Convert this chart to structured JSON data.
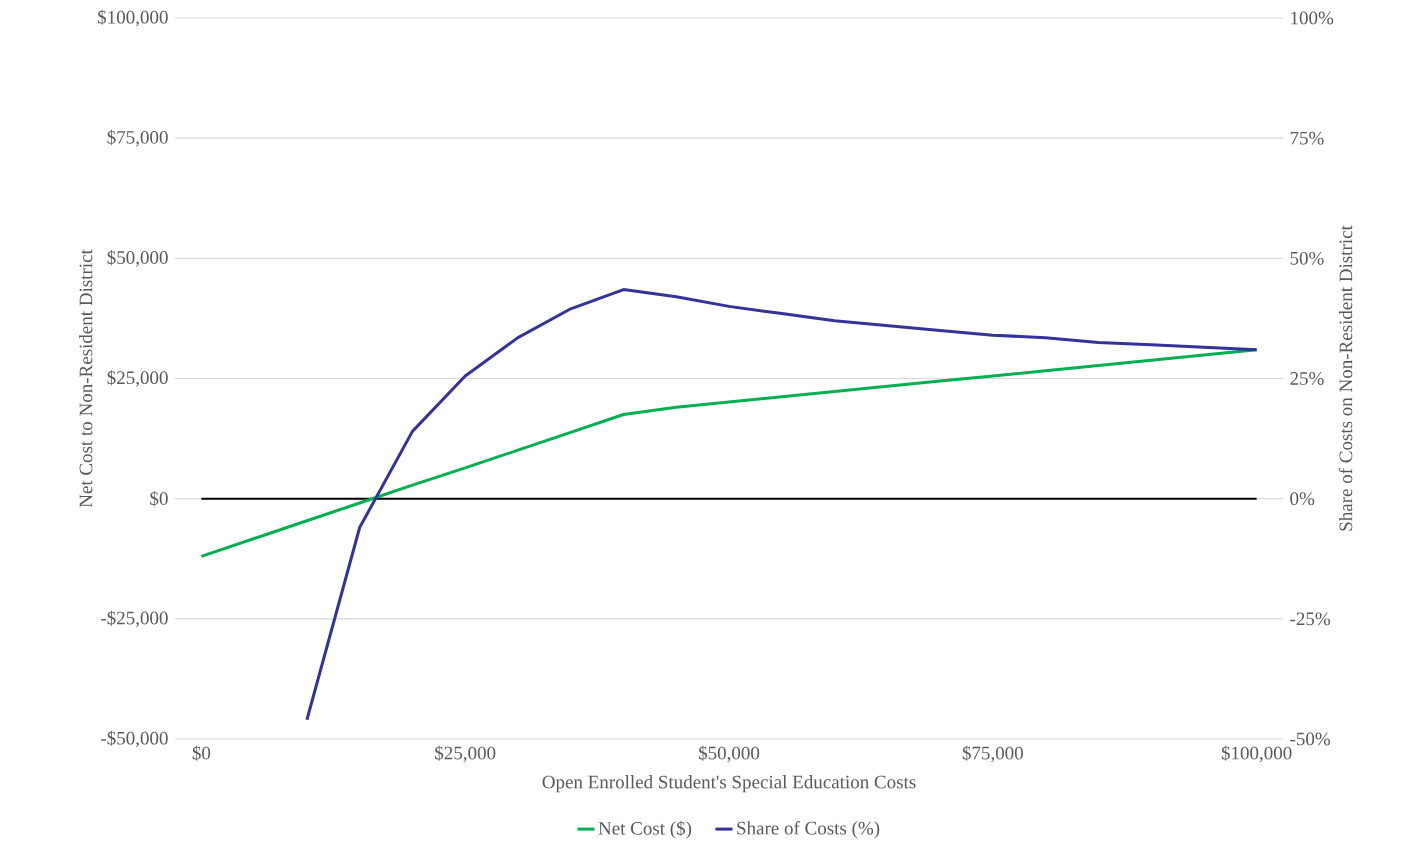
{
  "chart_data": {
    "type": "line",
    "xlabel": "Open Enrolled Student's Special Education Costs",
    "ylabel": "Net Cost to Non-Resident District",
    "y2label": "Share of Costs on Non-Resident District",
    "x": [
      0,
      5000,
      10000,
      15000,
      20000,
      25000,
      30000,
      35000,
      40000,
      45000,
      50000,
      55000,
      60000,
      65000,
      70000,
      75000,
      80000,
      85000,
      90000,
      95000,
      100000
    ],
    "series": [
      {
        "name": "Net Cost ($)",
        "color": "#00b050",
        "values": [
          -12000,
          -8300,
          -4600,
          -900,
          2800,
          6400,
          10100,
          13800,
          17500,
          19000,
          20100,
          21200,
          22300,
          23400,
          24500,
          25500,
          26600,
          27700,
          28800,
          29900,
          31000
        ]
      },
      {
        "name": "Share of Costs (%)",
        "color": "#333399",
        "axis": "y2",
        "x": [
          10000,
          15000,
          20000,
          25000,
          30000,
          35000,
          40000,
          45000,
          50000,
          55000,
          60000,
          65000,
          70000,
          75000,
          80000,
          85000,
          90000,
          95000,
          100000
        ],
        "values": [
          -46,
          -6,
          14,
          25.5,
          33.5,
          39.5,
          43.5,
          42,
          40,
          38.5,
          37,
          36,
          35,
          34,
          33.5,
          32.5,
          32,
          31.5,
          31
        ]
      }
    ],
    "xlim": [
      -2500,
      102500
    ],
    "xticks": [
      {
        "value": 0,
        "label": "$0"
      },
      {
        "value": 25000,
        "label": "$25,000"
      },
      {
        "value": 50000,
        "label": "$50,000"
      },
      {
        "value": 75000,
        "label": "$75,000"
      },
      {
        "value": 100000,
        "label": "$100,000"
      }
    ],
    "ylim": [
      -50000,
      100000
    ],
    "yticks": [
      {
        "value": -50000,
        "label": "-$50,000"
      },
      {
        "value": -25000,
        "label": "-$25,000"
      },
      {
        "value": 0,
        "label": "$0"
      },
      {
        "value": 25000,
        "label": "$25,000"
      },
      {
        "value": 50000,
        "label": "$50,000"
      },
      {
        "value": 75000,
        "label": "$75,000"
      },
      {
        "value": 100000,
        "label": "$100,000"
      }
    ],
    "y2lim": [
      -50,
      100
    ],
    "y2ticks": [
      {
        "value": -50,
        "label": "-50%"
      },
      {
        "value": -25,
        "label": "-25%"
      },
      {
        "value": 0,
        "label": "0%"
      },
      {
        "value": 25,
        "label": "25%"
      },
      {
        "value": 50,
        "label": "50%"
      },
      {
        "value": 75,
        "label": "75%"
      },
      {
        "value": 100,
        "label": "100%"
      }
    ],
    "ref_lines": [
      {
        "axis": "y",
        "value": 0,
        "color": "#000000"
      }
    ],
    "grid": "y",
    "legend": "bottom"
  }
}
